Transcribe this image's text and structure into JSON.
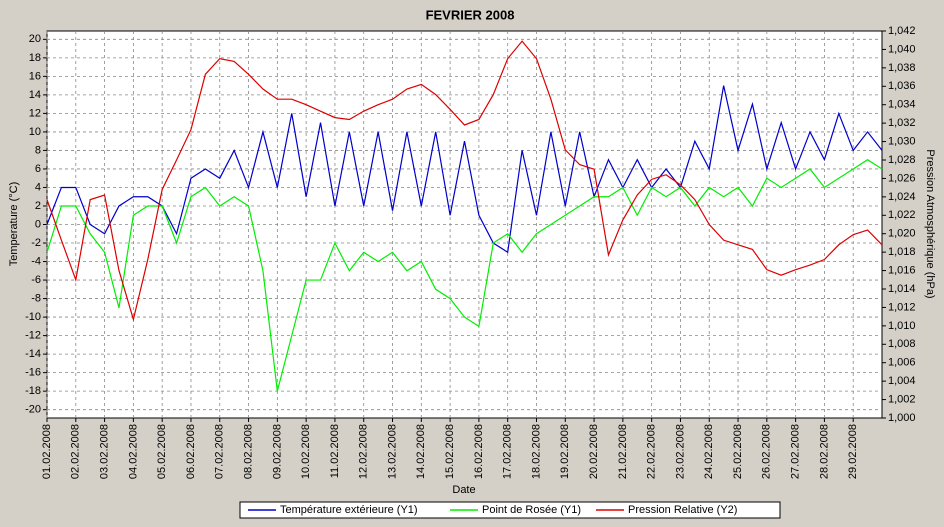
{
  "chart_data": {
    "type": "line",
    "title": "FEVRIER  2008",
    "x_label": "Date",
    "y_label": "Temperature (°C)",
    "y2_label": "Pression Atmosphérique (hPa)",
    "grid": true,
    "x": [
      0,
      0.5,
      1,
      1.5,
      2,
      2.5,
      3,
      3.5,
      4,
      4.5,
      5,
      5.5,
      6,
      6.5,
      7,
      7.5,
      8,
      8.5,
      9,
      9.5,
      10,
      10.5,
      11,
      11.5,
      12,
      12.5,
      13,
      13.5,
      14,
      14.5,
      15,
      15.5,
      16,
      16.5,
      17,
      17.5,
      18,
      18.5,
      19,
      19.5,
      20,
      20.5,
      21,
      21.5,
      22,
      22.5,
      23,
      23.5,
      24,
      24.5,
      25,
      25.5,
      26,
      26.5,
      27,
      27.5,
      28,
      28.5,
      29
    ],
    "xlim": [
      0,
      29
    ],
    "xticks": [
      {
        "value": 0,
        "label": "01.02.2008"
      },
      {
        "value": 1,
        "label": "02.02.2008"
      },
      {
        "value": 2,
        "label": "03.02.2008"
      },
      {
        "value": 3,
        "label": "04.02.2008"
      },
      {
        "value": 4,
        "label": "05.02.2008"
      },
      {
        "value": 5,
        "label": "06.02.2008"
      },
      {
        "value": 6,
        "label": "07.02.2008"
      },
      {
        "value": 7,
        "label": "08.02.2008"
      },
      {
        "value": 8,
        "label": "09.02.2008"
      },
      {
        "value": 9,
        "label": "10.02.2008"
      },
      {
        "value": 10,
        "label": "11.02.2008"
      },
      {
        "value": 11,
        "label": "12.02.2008"
      },
      {
        "value": 12,
        "label": "13.02.2008"
      },
      {
        "value": 13,
        "label": "14.02.2008"
      },
      {
        "value": 14,
        "label": "15.02.2008"
      },
      {
        "value": 15,
        "label": "16.02.2008"
      },
      {
        "value": 16,
        "label": "17.02.2008"
      },
      {
        "value": 17,
        "label": "18.02.2008"
      },
      {
        "value": 18,
        "label": "19.02.2008"
      },
      {
        "value": 19,
        "label": "20.02.2008"
      },
      {
        "value": 20,
        "label": "21.02.2008"
      },
      {
        "value": 21,
        "label": "22.02.2008"
      },
      {
        "value": 22,
        "label": "23.02.2008"
      },
      {
        "value": 23,
        "label": "24.02.2008"
      },
      {
        "value": 24,
        "label": "25.02.2008"
      },
      {
        "value": 25,
        "label": "26.02.2008"
      },
      {
        "value": 26,
        "label": "27.02.2008"
      },
      {
        "value": 27,
        "label": "28.02.2008"
      },
      {
        "value": 28,
        "label": "29.02.2008"
      }
    ],
    "ylim": [
      -20.9,
      20.9
    ],
    "yticks": [
      -20,
      -18,
      -16,
      -14,
      -12,
      -10,
      -8,
      -6,
      -4,
      -2,
      0,
      2,
      4,
      6,
      8,
      10,
      12,
      14,
      16,
      18,
      20
    ],
    "y2lim": [
      1.0,
      1.042
    ],
    "y2ticks": [
      {
        "value": 1.0,
        "label": "1,000"
      },
      {
        "value": 1.002,
        "label": "1,002"
      },
      {
        "value": 1.004,
        "label": "1,004"
      },
      {
        "value": 1.006,
        "label": "1,006"
      },
      {
        "value": 1.008,
        "label": "1,008"
      },
      {
        "value": 1.01,
        "label": "1,010"
      },
      {
        "value": 1.012,
        "label": "1,012"
      },
      {
        "value": 1.014,
        "label": "1,014"
      },
      {
        "value": 1.016,
        "label": "1,016"
      },
      {
        "value": 1.018,
        "label": "1,018"
      },
      {
        "value": 1.02,
        "label": "1,020"
      },
      {
        "value": 1.022,
        "label": "1,022"
      },
      {
        "value": 1.024,
        "label": "1,024"
      },
      {
        "value": 1.026,
        "label": "1,026"
      },
      {
        "value": 1.028,
        "label": "1,028"
      },
      {
        "value": 1.03,
        "label": "1,030"
      },
      {
        "value": 1.032,
        "label": "1,032"
      },
      {
        "value": 1.034,
        "label": "1,034"
      },
      {
        "value": 1.036,
        "label": "1,036"
      },
      {
        "value": 1.038,
        "label": "1,038"
      },
      {
        "value": 1.04,
        "label": "1,040"
      },
      {
        "value": 1.042,
        "label": "1,042"
      }
    ],
    "series": [
      {
        "name": "Température extérieure (Y1)",
        "color": "#0000cc",
        "axis": "y1",
        "values": [
          0,
          4,
          4,
          0,
          -1,
          2,
          3,
          3,
          2,
          -1,
          5,
          6,
          5,
          8,
          4,
          10,
          4,
          12,
          3,
          11,
          2,
          10,
          2,
          10,
          1.5,
          10,
          2,
          10,
          1,
          9,
          1,
          -2,
          -3,
          8,
          1,
          10,
          2,
          10,
          3,
          7,
          4,
          7,
          4,
          6,
          4,
          9,
          6,
          15,
          8,
          13,
          6,
          11,
          6,
          10,
          7,
          12,
          8,
          10,
          8
        ]
      },
      {
        "name": "Point de Rosée (Y1)",
        "color": "#00ee00",
        "axis": "y1",
        "values": [
          -3,
          2,
          2,
          -1,
          -3,
          -9,
          1,
          2,
          2,
          -2,
          3,
          4,
          2,
          3,
          2,
          -5,
          -18,
          -12,
          -6,
          -6,
          -2,
          -5,
          -3,
          -4,
          -3,
          -5,
          -4,
          -7,
          -8,
          -10,
          -11,
          -2,
          -1,
          -3,
          -1,
          0,
          1,
          2,
          3,
          3,
          4,
          1,
          4,
          3,
          4,
          2,
          4,
          3,
          4,
          2,
          5,
          4,
          5,
          6,
          4,
          5,
          6,
          7,
          6
        ]
      },
      {
        "name": "Pression Relative (Y2)",
        "color": "#dd0000",
        "axis": "y2",
        "values": [
          1.0237,
          1.0193,
          1.015,
          1.0237,
          1.0242,
          1.016,
          1.0107,
          1.0172,
          1.0248,
          1.028,
          1.0313,
          1.0373,
          1.039,
          1.0387,
          1.0373,
          1.0357,
          1.0346,
          1.0346,
          1.034,
          1.0333,
          1.0326,
          1.0324,
          1.0333,
          1.034,
          1.0346,
          1.0357,
          1.0362,
          1.0351,
          1.0335,
          1.0318,
          1.0324,
          1.0351,
          1.039,
          1.0409,
          1.039,
          1.0346,
          1.0291,
          1.0275,
          1.027,
          1.0177,
          1.0215,
          1.0242,
          1.0259,
          1.0264,
          1.0253,
          1.0237,
          1.021,
          1.0193,
          1.0188,
          1.0183,
          1.0161,
          1.0155,
          1.0161,
          1.0166,
          1.0172,
          1.0188,
          1.0199,
          1.0204,
          1.0188
        ]
      }
    ]
  }
}
